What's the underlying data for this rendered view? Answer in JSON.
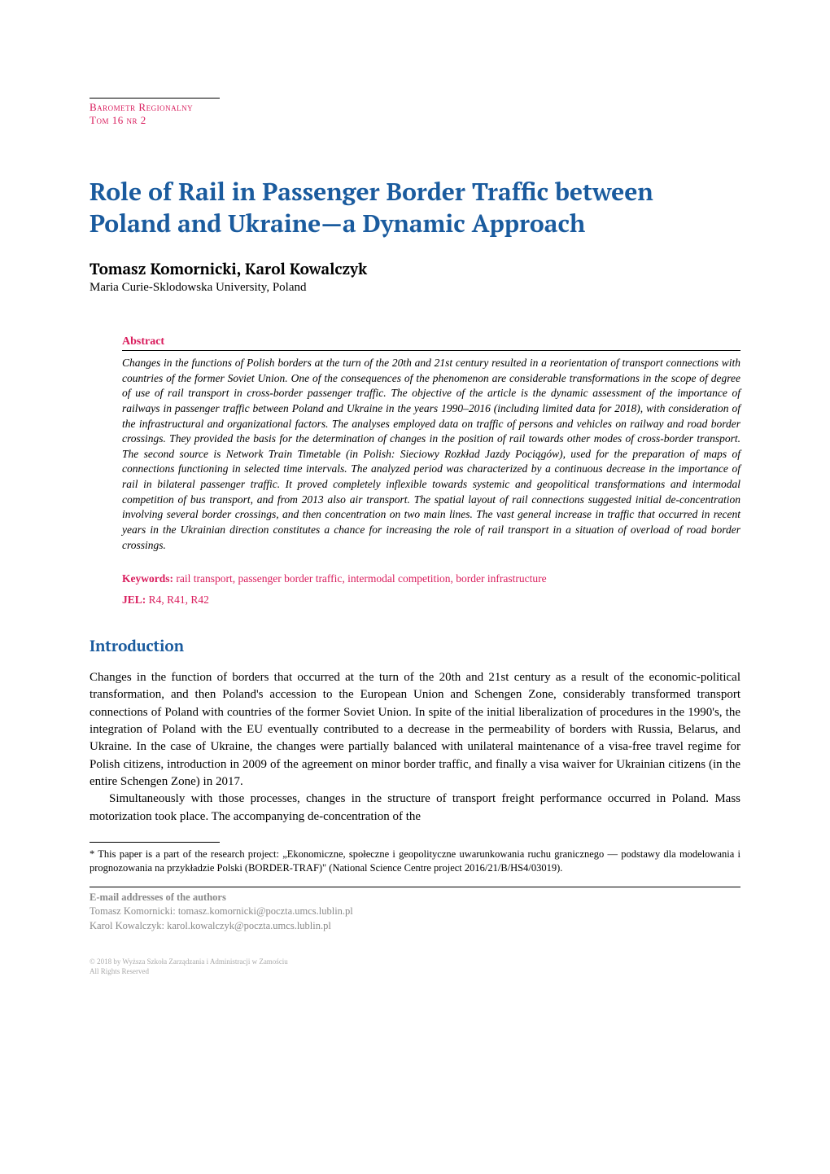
{
  "journal": {
    "name": "Barometr Regionalny",
    "issue": "Tom 16 nr 2"
  },
  "title": "Role of Rail in Passenger Border Traffic between Poland and Ukraine—a Dynamic Approach",
  "authors": "Tomasz Komornicki, Karol Kowalczyk",
  "affiliation": "Maria Curie-Sklodowska University, Poland",
  "abstract": {
    "label": "Abstract",
    "text": "Changes in the functions of Polish borders at the turn of the 20th and 21st century resulted in a reorientation of transport connections with countries of the former Soviet Union. One of the consequences of the phenomenon are considerable transformations in the scope of degree of use of rail transport in cross-border passenger traffic. The objective of the article is the dynamic assessment of the importance of railways in passenger traffic between Poland and Ukraine in the years 1990–2016 (including limited data for 2018), with consideration of the infrastructural and organizational factors. The analyses employed data on traffic of persons and vehicles on railway and road border crossings. They provided the basis for the determination of changes in the position of rail towards other modes of cross-border transport. The second source is Network Train Timetable (in Polish: Sieciowy Rozkład Jazdy Pociągów), used for the preparation of maps of connections functioning in selected time intervals. The analyzed period was characterized by a continuous decrease in the importance of rail in bilateral passenger traffic. It proved completely inflexible towards systemic and geopolitical transformations and intermodal competition of bus transport, and from 2013 also air transport. The spatial layout of rail connections suggested initial de-concentration involving several border crossings, and then concentration on two main lines. The vast general increase in traffic that occurred in recent years in the Ukrainian direction constitutes a chance for increasing the role of rail transport in a situation of overload of road border crossings."
  },
  "keywords": {
    "label": "Keywords:",
    "value": "rail transport, passenger border traffic, intermodal competition, border infrastructure"
  },
  "jel": {
    "label": "JEL:",
    "value": "R4, R41, R42"
  },
  "section": {
    "heading": "Introduction",
    "para1": "Changes in the function of borders that occurred at the turn of the 20th and 21st century as a result of the economic-political transformation, and then Poland's accession to the European Union and Schengen Zone, considerably transformed transport connections of Poland with countries of the former Soviet Union. In spite of the initial liberalization of procedures in the 1990's, the integration of Poland with the EU eventually contributed to a decrease in the permeability of borders with Russia, Belarus, and Ukraine. In the case of Ukraine, the changes were partially balanced with unilateral maintenance of a visa-free travel regime for Polish citizens, introduction in 2009 of the agreement on minor border traffic, and finally a visa waiver for Ukrainian citizens (in the entire Schengen Zone) in 2017.",
    "para2": "Simultaneously with those processes, changes in the structure of transport freight performance occurred in Poland. Mass motorization took place. The accompanying de-concentration of the"
  },
  "footnote": "* This paper is a part of the research project: „Ekonomiczne, społeczne i geopolityczne uwarunkowania ruchu granicznego — podstawy dla modelowania i prognozowania na przykładzie Polski (BORDER-TRAF)\" (National Science Centre project 2016/21/B/HS4/03019).",
  "emails": {
    "header": "E-mail addresses of the authors",
    "line1": "Tomasz Komornicki: tomasz.komornicki@poczta.umcs.lublin.pl",
    "line2": "Karol Kowalczyk: karol.kowalczyk@poczta.umcs.lublin.pl"
  },
  "copyright": {
    "line1": "© 2018 by Wyższa Szkoła Zarządzania i Administracji w Zamościu",
    "line2": "All Rights Reserved"
  },
  "colors": {
    "title_blue": "#1a5b9e",
    "accent_red": "#d91c5c",
    "body_text": "#000000",
    "muted_gray": "#888888",
    "copyright_gray": "#aaaaaa",
    "background": "#ffffff"
  },
  "typography": {
    "title_size_pt": 22,
    "heading_size_pt": 14,
    "body_size_pt": 11,
    "abstract_size_pt": 10,
    "footnote_size_pt": 9,
    "copyright_size_pt": 7
  }
}
